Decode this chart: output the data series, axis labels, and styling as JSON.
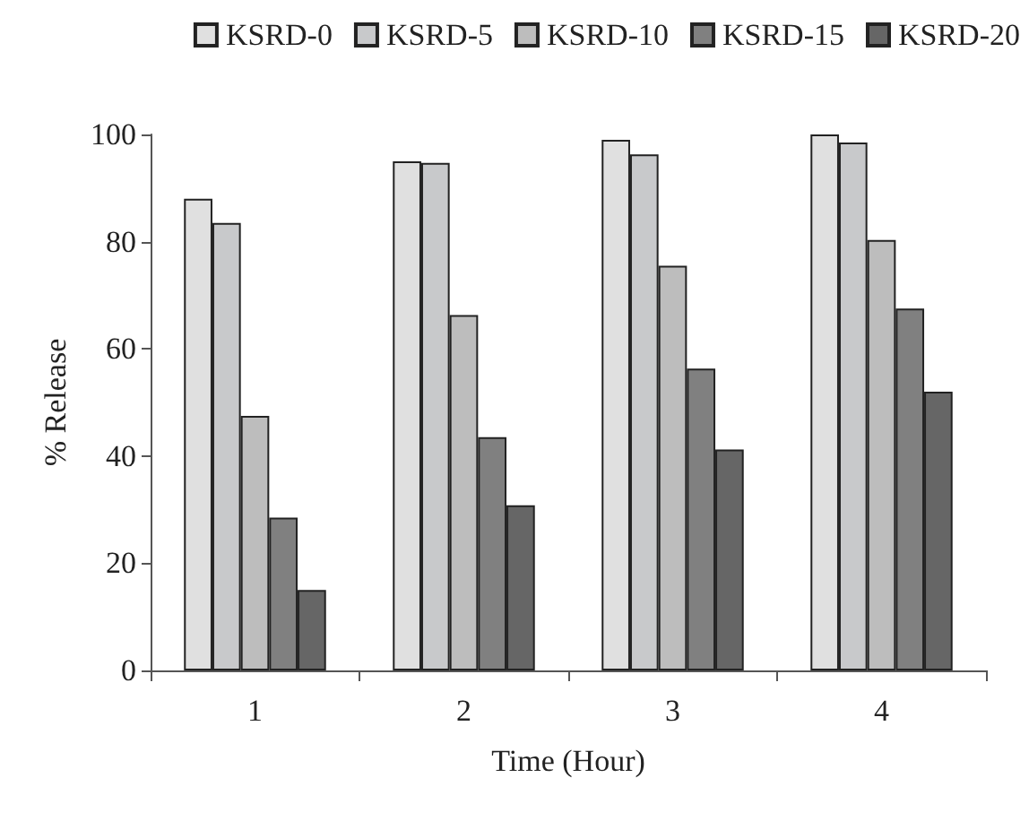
{
  "chart_data": {
    "type": "bar",
    "xlabel": "Time (Hour)",
    "ylabel": "% Release",
    "categories": [
      "1",
      "2",
      "3",
      "4"
    ],
    "series": [
      {
        "name": "KSRD-0",
        "color": "#e0e0e0",
        "values": [
          88,
          95,
          99,
          100
        ]
      },
      {
        "name": "KSRD-5",
        "color": "#c8c9cb",
        "values": [
          83.5,
          94.7,
          96.3,
          98.5
        ]
      },
      {
        "name": "KSRD-10",
        "color": "#bdbdbd",
        "values": [
          47.5,
          66.3,
          75.5,
          80.3
        ]
      },
      {
        "name": "KSRD-15",
        "color": "#808080",
        "values": [
          28.5,
          43.5,
          56.3,
          67.5
        ]
      },
      {
        "name": "KSRD-20",
        "color": "#666666",
        "values": [
          15,
          30.8,
          41.2,
          52
        ]
      }
    ],
    "ylim": [
      0,
      100
    ],
    "yticks": [
      0,
      20,
      40,
      60,
      80,
      100
    ],
    "grid": false,
    "legend": "top"
  }
}
